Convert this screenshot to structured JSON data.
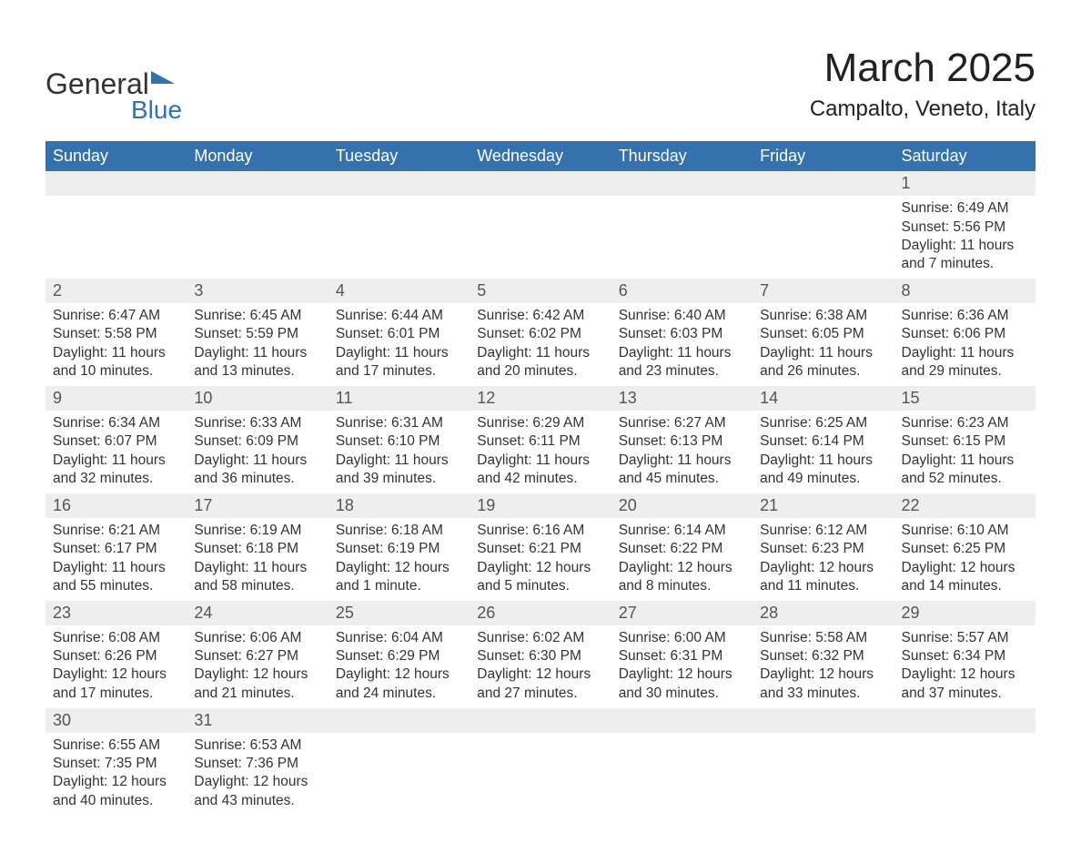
{
  "brand": {
    "line1": "General",
    "line2": "Blue"
  },
  "title": {
    "month": "March 2025",
    "location": "Campalto, Veneto, Italy"
  },
  "colors": {
    "header_bg": "#3571ad",
    "header_text": "#ffffff",
    "daynum_bg": "#eeeeee",
    "row_border": "#3571ad",
    "body_text": "#333333",
    "title_text": "#222222",
    "brand_accent": "#3571ad"
  },
  "day_headers": [
    "Sunday",
    "Monday",
    "Tuesday",
    "Wednesday",
    "Thursday",
    "Friday",
    "Saturday"
  ],
  "weeks": [
    [
      null,
      null,
      null,
      null,
      null,
      null,
      {
        "n": "1",
        "sunrise": "Sunrise: 6:49 AM",
        "sunset": "Sunset: 5:56 PM",
        "day1": "Daylight: 11 hours",
        "day2": "and 7 minutes."
      }
    ],
    [
      {
        "n": "2",
        "sunrise": "Sunrise: 6:47 AM",
        "sunset": "Sunset: 5:58 PM",
        "day1": "Daylight: 11 hours",
        "day2": "and 10 minutes."
      },
      {
        "n": "3",
        "sunrise": "Sunrise: 6:45 AM",
        "sunset": "Sunset: 5:59 PM",
        "day1": "Daylight: 11 hours",
        "day2": "and 13 minutes."
      },
      {
        "n": "4",
        "sunrise": "Sunrise: 6:44 AM",
        "sunset": "Sunset: 6:01 PM",
        "day1": "Daylight: 11 hours",
        "day2": "and 17 minutes."
      },
      {
        "n": "5",
        "sunrise": "Sunrise: 6:42 AM",
        "sunset": "Sunset: 6:02 PM",
        "day1": "Daylight: 11 hours",
        "day2": "and 20 minutes."
      },
      {
        "n": "6",
        "sunrise": "Sunrise: 6:40 AM",
        "sunset": "Sunset: 6:03 PM",
        "day1": "Daylight: 11 hours",
        "day2": "and 23 minutes."
      },
      {
        "n": "7",
        "sunrise": "Sunrise: 6:38 AM",
        "sunset": "Sunset: 6:05 PM",
        "day1": "Daylight: 11 hours",
        "day2": "and 26 minutes."
      },
      {
        "n": "8",
        "sunrise": "Sunrise: 6:36 AM",
        "sunset": "Sunset: 6:06 PM",
        "day1": "Daylight: 11 hours",
        "day2": "and 29 minutes."
      }
    ],
    [
      {
        "n": "9",
        "sunrise": "Sunrise: 6:34 AM",
        "sunset": "Sunset: 6:07 PM",
        "day1": "Daylight: 11 hours",
        "day2": "and 32 minutes."
      },
      {
        "n": "10",
        "sunrise": "Sunrise: 6:33 AM",
        "sunset": "Sunset: 6:09 PM",
        "day1": "Daylight: 11 hours",
        "day2": "and 36 minutes."
      },
      {
        "n": "11",
        "sunrise": "Sunrise: 6:31 AM",
        "sunset": "Sunset: 6:10 PM",
        "day1": "Daylight: 11 hours",
        "day2": "and 39 minutes."
      },
      {
        "n": "12",
        "sunrise": "Sunrise: 6:29 AM",
        "sunset": "Sunset: 6:11 PM",
        "day1": "Daylight: 11 hours",
        "day2": "and 42 minutes."
      },
      {
        "n": "13",
        "sunrise": "Sunrise: 6:27 AM",
        "sunset": "Sunset: 6:13 PM",
        "day1": "Daylight: 11 hours",
        "day2": "and 45 minutes."
      },
      {
        "n": "14",
        "sunrise": "Sunrise: 6:25 AM",
        "sunset": "Sunset: 6:14 PM",
        "day1": "Daylight: 11 hours",
        "day2": "and 49 minutes."
      },
      {
        "n": "15",
        "sunrise": "Sunrise: 6:23 AM",
        "sunset": "Sunset: 6:15 PM",
        "day1": "Daylight: 11 hours",
        "day2": "and 52 minutes."
      }
    ],
    [
      {
        "n": "16",
        "sunrise": "Sunrise: 6:21 AM",
        "sunset": "Sunset: 6:17 PM",
        "day1": "Daylight: 11 hours",
        "day2": "and 55 minutes."
      },
      {
        "n": "17",
        "sunrise": "Sunrise: 6:19 AM",
        "sunset": "Sunset: 6:18 PM",
        "day1": "Daylight: 11 hours",
        "day2": "and 58 minutes."
      },
      {
        "n": "18",
        "sunrise": "Sunrise: 6:18 AM",
        "sunset": "Sunset: 6:19 PM",
        "day1": "Daylight: 12 hours",
        "day2": "and 1 minute."
      },
      {
        "n": "19",
        "sunrise": "Sunrise: 6:16 AM",
        "sunset": "Sunset: 6:21 PM",
        "day1": "Daylight: 12 hours",
        "day2": "and 5 minutes."
      },
      {
        "n": "20",
        "sunrise": "Sunrise: 6:14 AM",
        "sunset": "Sunset: 6:22 PM",
        "day1": "Daylight: 12 hours",
        "day2": "and 8 minutes."
      },
      {
        "n": "21",
        "sunrise": "Sunrise: 6:12 AM",
        "sunset": "Sunset: 6:23 PM",
        "day1": "Daylight: 12 hours",
        "day2": "and 11 minutes."
      },
      {
        "n": "22",
        "sunrise": "Sunrise: 6:10 AM",
        "sunset": "Sunset: 6:25 PM",
        "day1": "Daylight: 12 hours",
        "day2": "and 14 minutes."
      }
    ],
    [
      {
        "n": "23",
        "sunrise": "Sunrise: 6:08 AM",
        "sunset": "Sunset: 6:26 PM",
        "day1": "Daylight: 12 hours",
        "day2": "and 17 minutes."
      },
      {
        "n": "24",
        "sunrise": "Sunrise: 6:06 AM",
        "sunset": "Sunset: 6:27 PM",
        "day1": "Daylight: 12 hours",
        "day2": "and 21 minutes."
      },
      {
        "n": "25",
        "sunrise": "Sunrise: 6:04 AM",
        "sunset": "Sunset: 6:29 PM",
        "day1": "Daylight: 12 hours",
        "day2": "and 24 minutes."
      },
      {
        "n": "26",
        "sunrise": "Sunrise: 6:02 AM",
        "sunset": "Sunset: 6:30 PM",
        "day1": "Daylight: 12 hours",
        "day2": "and 27 minutes."
      },
      {
        "n": "27",
        "sunrise": "Sunrise: 6:00 AM",
        "sunset": "Sunset: 6:31 PM",
        "day1": "Daylight: 12 hours",
        "day2": "and 30 minutes."
      },
      {
        "n": "28",
        "sunrise": "Sunrise: 5:58 AM",
        "sunset": "Sunset: 6:32 PM",
        "day1": "Daylight: 12 hours",
        "day2": "and 33 minutes."
      },
      {
        "n": "29",
        "sunrise": "Sunrise: 5:57 AM",
        "sunset": "Sunset: 6:34 PM",
        "day1": "Daylight: 12 hours",
        "day2": "and 37 minutes."
      }
    ],
    [
      {
        "n": "30",
        "sunrise": "Sunrise: 6:55 AM",
        "sunset": "Sunset: 7:35 PM",
        "day1": "Daylight: 12 hours",
        "day2": "and 40 minutes."
      },
      {
        "n": "31",
        "sunrise": "Sunrise: 6:53 AM",
        "sunset": "Sunset: 7:36 PM",
        "day1": "Daylight: 12 hours",
        "day2": "and 43 minutes."
      },
      null,
      null,
      null,
      null,
      null
    ]
  ]
}
